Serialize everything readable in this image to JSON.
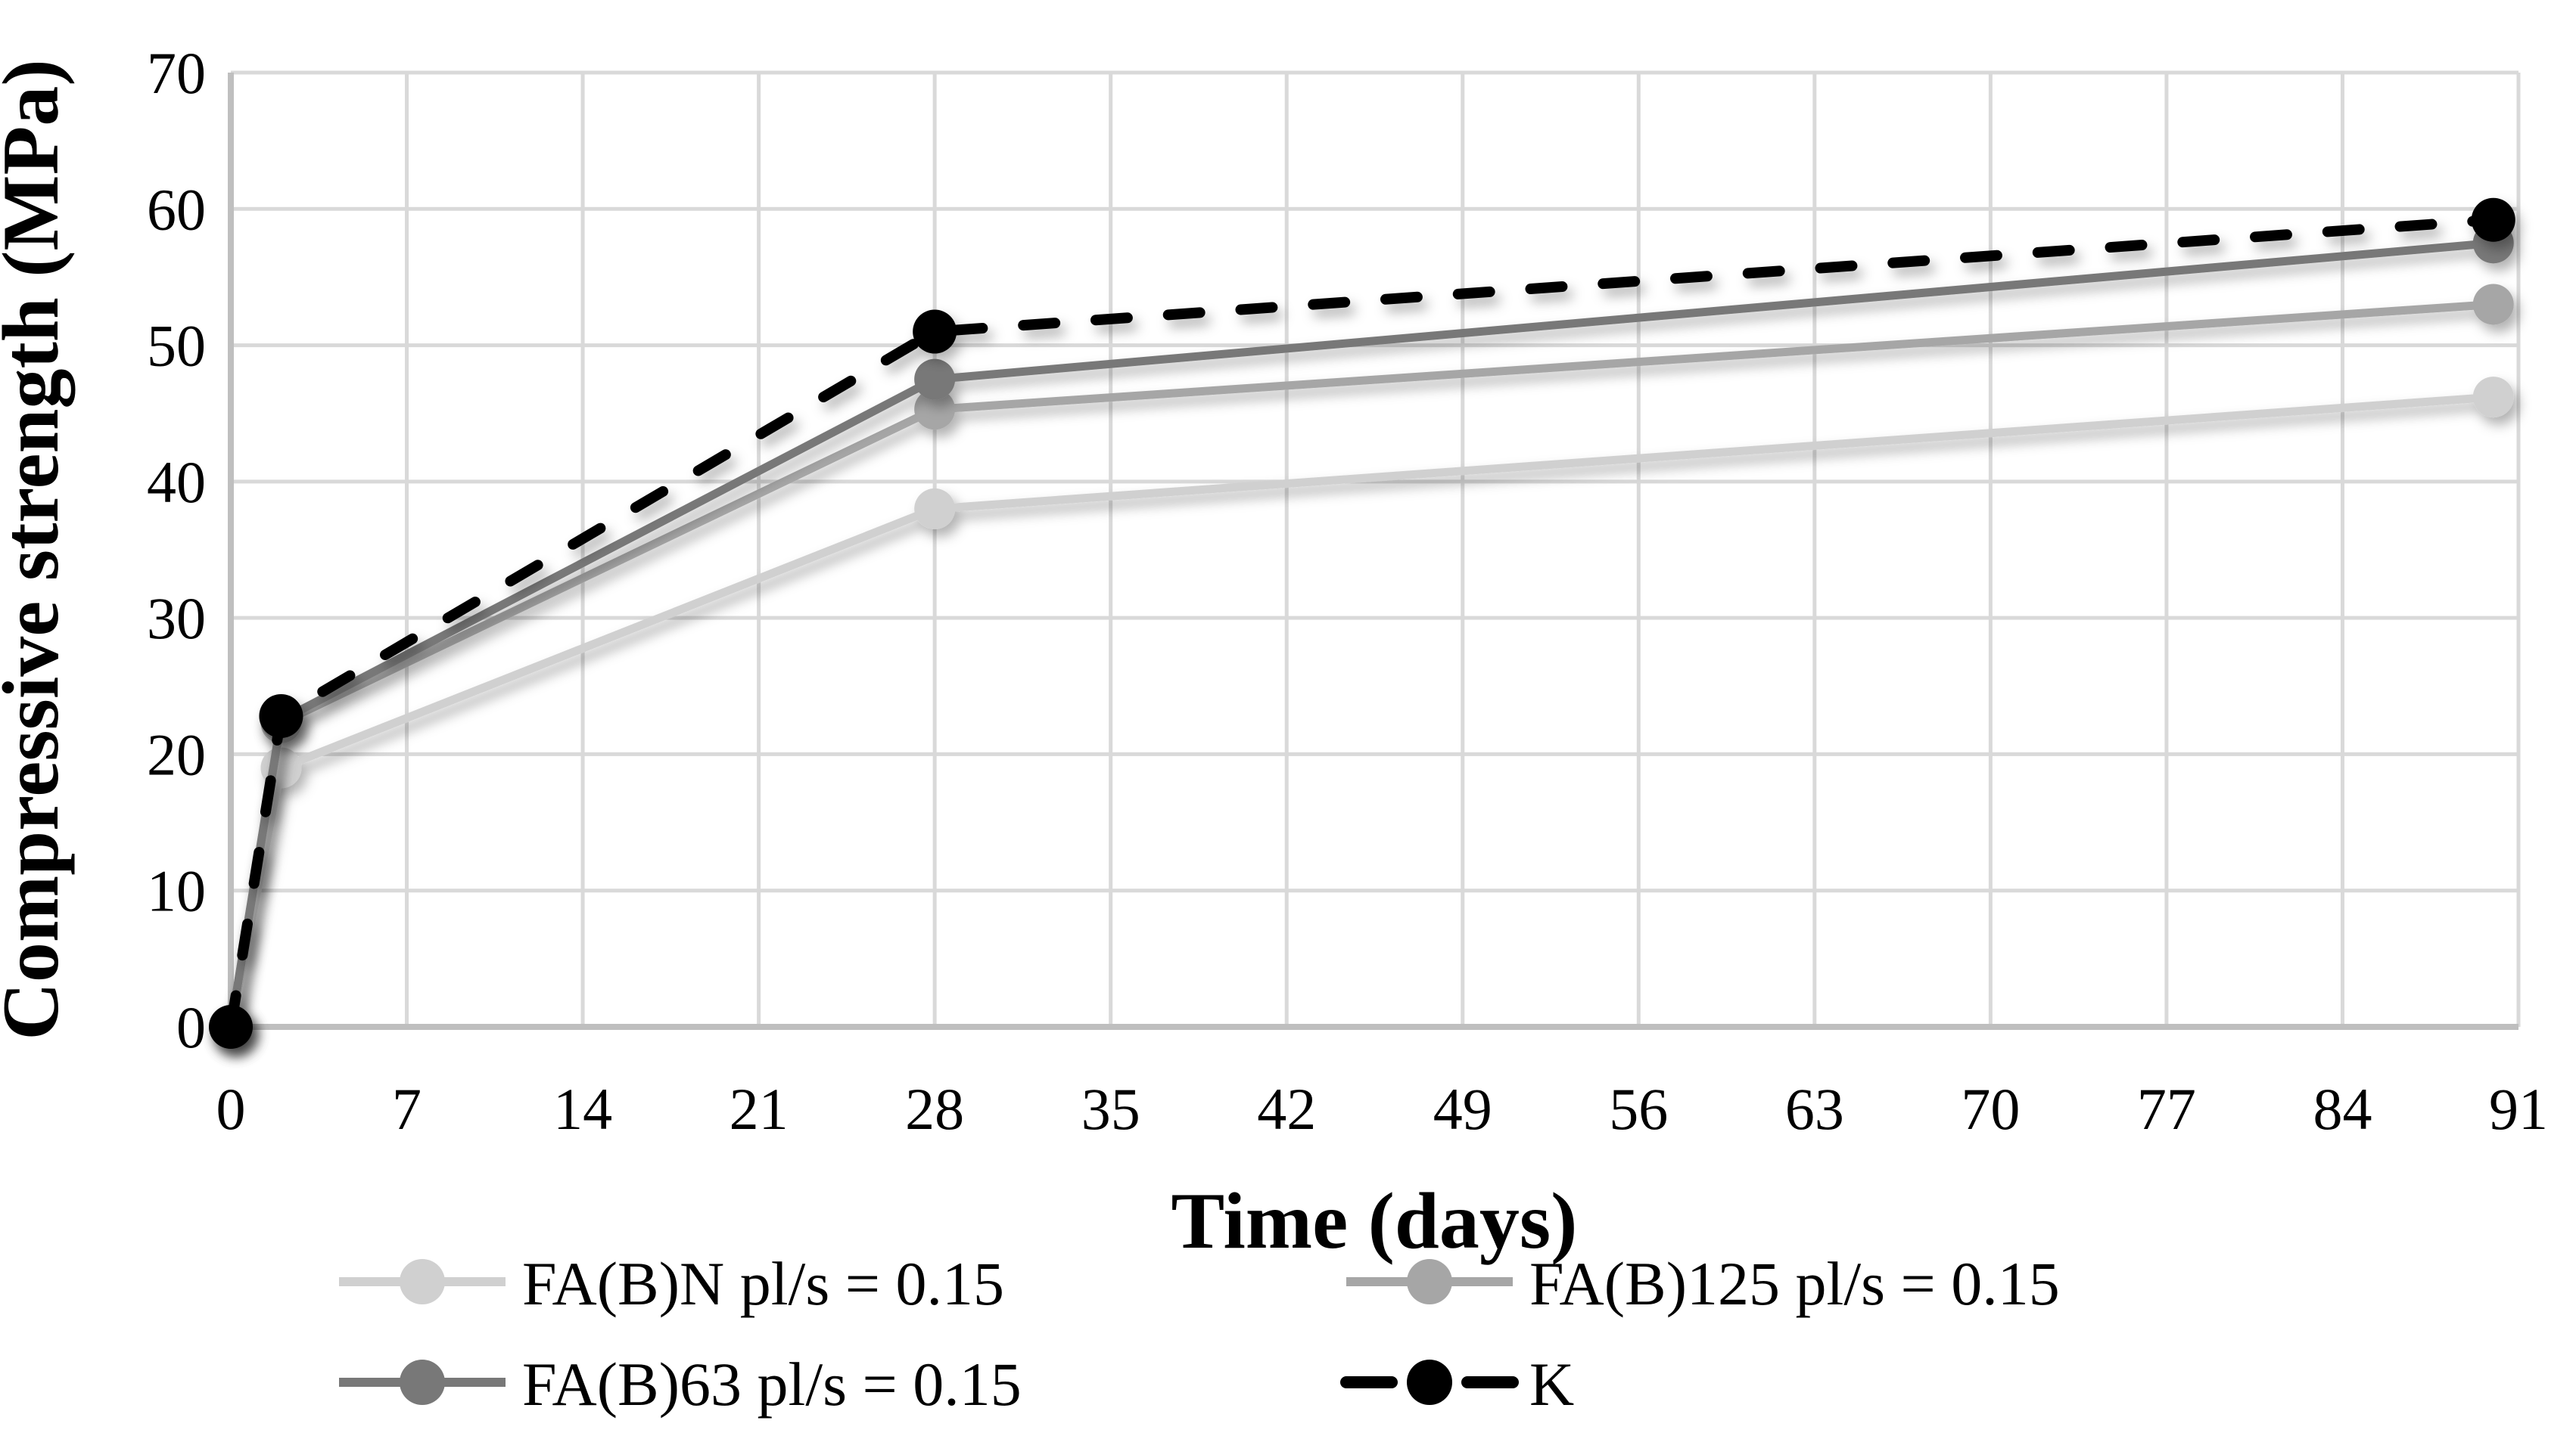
{
  "chart_data": {
    "type": "line",
    "title": "",
    "xlabel": "Time (days)",
    "ylabel": "Compressive strength (MPa)",
    "x": [
      0,
      2,
      28,
      90
    ],
    "xlim": [
      0,
      91
    ],
    "ylim": [
      0,
      70
    ],
    "xticks": [
      0,
      7,
      14,
      21,
      28,
      35,
      42,
      49,
      56,
      63,
      70,
      77,
      84,
      91
    ],
    "yticks": [
      0,
      10,
      20,
      30,
      40,
      50,
      60,
      70
    ],
    "grid": true,
    "legend_position": "bottom",
    "background_color": "#ffffff",
    "gridline_color": "#d9d9d9",
    "axis_line_color": "#bfbfbf",
    "text_color": "#000000",
    "series": [
      {
        "name": "FA(B)N pl/s = 0.15",
        "values": [
          0,
          19,
          38,
          46.2
        ],
        "color": "#d0d0d0",
        "style": "solid",
        "marker": "circle"
      },
      {
        "name": "FA(B)125 pl/s = 0.15",
        "values": [
          0,
          22.3,
          45.3,
          53
        ],
        "color": "#a6a6a6",
        "style": "solid",
        "marker": "circle"
      },
      {
        "name": "FA(B)63 pl/s = 0.15",
        "values": [
          0,
          22.5,
          47.5,
          57.5
        ],
        "color": "#787878",
        "style": "solid",
        "marker": "circle"
      },
      {
        "name": "K",
        "values": [
          0,
          22.8,
          51,
          59.2
        ],
        "color": "#000000",
        "style": "dashed",
        "marker": "circle"
      }
    ]
  }
}
